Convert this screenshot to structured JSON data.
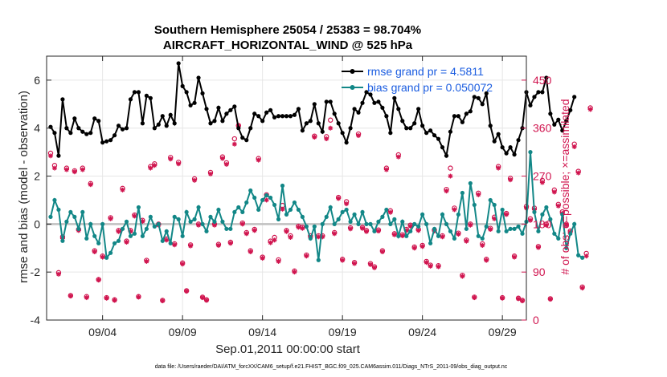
{
  "chart_data": {
    "type": "line",
    "title": "Southern Hemisphere 25054 / 25383 = 98.704%",
    "subtitle": "AIRCRAFT_HORIZONTAL_WIND @ 525 hPa",
    "xlabel": "Sep.01,2011 00:00:00 start",
    "ylabel": "rmse and bias (model - observation)",
    "y2label": "# of obs: o=possible; ×=assimilated",
    "footnote": "data file: /Users/raeder/DAI/ATM_forcXX/CAM6_setup/f.e21.FHIST_BGC.f09_025.CAM6assim.011/Diags_NTrS_2011-09/obs_diag_output.nc",
    "xlim": [
      0.5,
      30.5
    ],
    "ylim": [
      -4,
      7
    ],
    "y2lim": [
      0,
      495
    ],
    "x_ticks": [
      4,
      9,
      14,
      19,
      24,
      29
    ],
    "x_tick_labels": [
      "09/04",
      "09/09",
      "09/14",
      "09/19",
      "09/24",
      "09/29"
    ],
    "y_ticks": [
      -4,
      -2,
      0,
      2,
      4,
      6
    ],
    "y_tick_labels": [
      "-4",
      "-2",
      "0",
      "2",
      "4",
      "6"
    ],
    "y2_ticks": [
      0,
      90,
      180,
      270,
      360,
      450
    ],
    "y2_tick_labels": [
      "0",
      "90",
      "180",
      "270",
      "360",
      "450"
    ],
    "x_start": 0.75,
    "x_step": 0.25,
    "series": [
      {
        "name": "rmse grand pr = 4.5811",
        "color": "#000000",
        "values": [
          4.05,
          3.8,
          2.85,
          5.2,
          4.0,
          3.8,
          4.4,
          4.0,
          3.85,
          3.75,
          3.8,
          4.4,
          4.3,
          3.4,
          3.45,
          3.5,
          3.7,
          4.1,
          3.95,
          4.0,
          5.2,
          5.5,
          5.5,
          4.2,
          5.35,
          5.25,
          4.0,
          4.15,
          4.5,
          4.1,
          4.55,
          4.2,
          6.7,
          5.75,
          5.5,
          4.95,
          5.05,
          6.1,
          5.45,
          4.8,
          4.2,
          4.3,
          4.85,
          4.3,
          4.6,
          4.75,
          4.9,
          4.0,
          3.6,
          3.5,
          4.0,
          4.6,
          4.5,
          4.3,
          4.65,
          4.75,
          4.45,
          4.5,
          4.5,
          4.5,
          4.5,
          4.55,
          4.8,
          3.9,
          4.2,
          4.3,
          5.0,
          4.2,
          3.85,
          5.1,
          5.1,
          4.6,
          4.2,
          3.8,
          3.4,
          4.0,
          4.8,
          4.65,
          5.05,
          5.5,
          5.4,
          5.05,
          5.1,
          4.85,
          4.5,
          3.8,
          5.25,
          4.8,
          4.3,
          4.0,
          4.0,
          4.2,
          4.8,
          4.1,
          3.8,
          3.9,
          3.7,
          3.55,
          3.2,
          2.85,
          3.85,
          4.5,
          4.5,
          4.25,
          4.6,
          4.7,
          5.3,
          5.25,
          5.0,
          5.45,
          4.1,
          3.45,
          3.75,
          3.2,
          2.95,
          3.2,
          2.9,
          3.5,
          4.0,
          5.5,
          4.95,
          5.3,
          5.5,
          5.5,
          6.1,
          4.6,
          4.15,
          4.35,
          3.9,
          4.3,
          4.75,
          5.3
        ]
      },
      {
        "name": "bias grand pr = 0.050072",
        "color": "#128787",
        "values": [
          0.3,
          1.0,
          0.6,
          -0.7,
          0.1,
          0.5,
          0.3,
          -0.2,
          0.5,
          -0.6,
          0.0,
          -0.5,
          -0.8,
          0.0,
          -1.4,
          -1.2,
          -0.8,
          -0.7,
          -0.2,
          0.1,
          -0.5,
          -0.4,
          0.7,
          -0.5,
          -0.2,
          0.3,
          -0.1,
          0.0,
          -0.7,
          -0.3,
          -0.8,
          0.3,
          0.2,
          -0.5,
          0.5,
          0.1,
          0.2,
          0.7,
          0.0,
          -0.3,
          0.3,
          0.1,
          0.6,
          0.1,
          -0.2,
          -0.2,
          0.5,
          0.7,
          0.5,
          0.9,
          1.4,
          1.1,
          0.6,
          1.0,
          1.2,
          1.1,
          0.8,
          0.2,
          1.6,
          0.4,
          0.6,
          0.9,
          0.6,
          0.3,
          -0.1,
          -0.6,
          -0.1,
          -1.5,
          0.0,
          0.3,
          0.7,
          0.0,
          0.2,
          0.5,
          0.6,
          0.1,
          0.4,
          0.0,
          0.5,
          0.0,
          0.0,
          -0.3,
          0.1,
          0.3,
          0.6,
          0.0,
          0.2,
          -0.5,
          0.1,
          -0.5,
          -0.3,
          0.0,
          -0.1,
          0.4,
          0.0,
          -0.8,
          -0.2,
          -0.5,
          0.4,
          0.0,
          -0.3,
          -0.6,
          0.4,
          1.3,
          -0.2,
          1.7,
          0.8,
          -0.5,
          -0.6,
          -0.1,
          1.0,
          0.8,
          -0.3,
          0.6,
          -0.3,
          -0.2,
          -0.2,
          -0.1,
          -0.4,
          0.1,
          3.0,
          0.5,
          -0.3,
          0.4,
          0.7,
          0.2,
          -0.4,
          -0.6,
          0.4,
          -1.0,
          -0.4,
          0.0,
          -1.3,
          -1.4
        ]
      }
    ],
    "obs_assimilated": [
      308,
      285,
      86,
      153,
      282,
      45,
      278,
      168,
      282,
      42,
      254,
      128,
      75,
      118,
      41,
      190,
      37,
      166,
      244,
      146,
      166,
      195,
      43,
      185,
      110,
      285,
      290,
      178,
      36,
      150,
      302,
      141,
      293,
      105,
      54,
      139,
      262,
      178,
      42,
      37,
      274,
      178,
      140,
      303,
      292,
      144,
      330,
      364,
      180,
      162,
      128,
      168,
      300,
      116,
      225,
      145,
      150,
      110,
      208,
      166,
      155,
      90,
      174,
      172,
      120,
      155,
      343,
      156,
      156,
      340,
      360,
      162,
      228,
      112,
      218,
      171,
      106,
      346,
      172,
      166,
      104,
      98,
      167,
      128,
      282,
      202,
      160,
      306,
      158,
      168,
      176,
      135,
      168,
      138,
      108,
      101,
      167,
      100,
      156,
      242,
      270,
      207,
      161,
      82,
      148,
      178,
      42,
      235,
      140,
      112,
      170,
      190,
      285,
      41,
      198,
      263,
      118,
      40,
      36,
      210,
      187,
      207,
      136,
      258,
      178,
      39,
      240,
      214,
      200,
      178,
      165,
      325,
      276,
      60,
      120,
      395
    ],
    "obs_possible": [
      313,
      290,
      89,
      156,
      285,
      46,
      280,
      170,
      285,
      44,
      256,
      130,
      76,
      120,
      42,
      192,
      38,
      168,
      247,
      148,
      168,
      197,
      44,
      187,
      112,
      288,
      293,
      180,
      37,
      152,
      305,
      143,
      296,
      107,
      55,
      141,
      265,
      180,
      43,
      38,
      277,
      180,
      142,
      306,
      295,
      146,
      340,
      365,
      182,
      164,
      130,
      170,
      303,
      118,
      235,
      148,
      155,
      113,
      215,
      168,
      158,
      92,
      176,
      174,
      122,
      158,
      345,
      158,
      158,
      344,
      375,
      164,
      230,
      114,
      222,
      173,
      108,
      349,
      174,
      168,
      106,
      100,
      169,
      130,
      285,
      205,
      162,
      310,
      160,
      170,
      178,
      137,
      170,
      140,
      110,
      103,
      169,
      102,
      158,
      245,
      285,
      210,
      163,
      84,
      150,
      180,
      43,
      238,
      143,
      114,
      172,
      193,
      288,
      42,
      200,
      266,
      120,
      41,
      37,
      213,
      190,
      210,
      138,
      262,
      180,
      40,
      244,
      217,
      203,
      180,
      167,
      330,
      279,
      62,
      125,
      398
    ]
  }
}
